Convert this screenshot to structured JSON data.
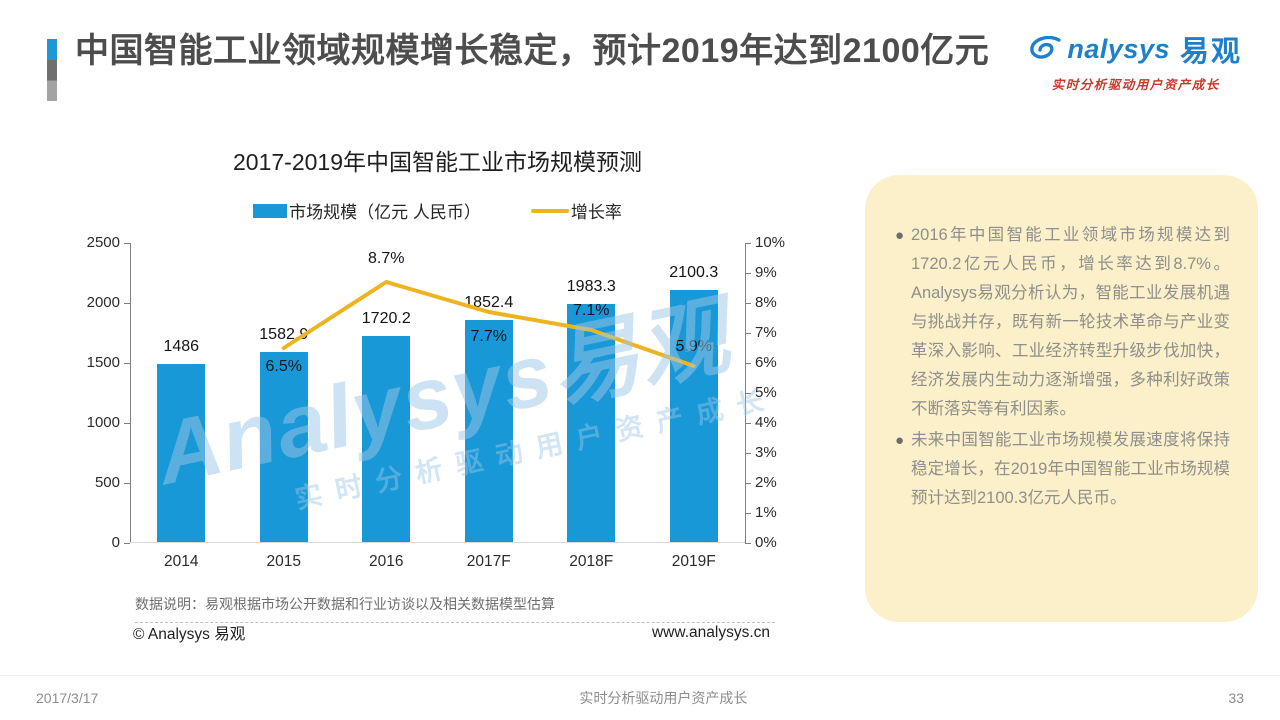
{
  "slide": {
    "title": "中国智能工业领域规模增长稳定，预计2019年达到2100亿元",
    "footer_date": "2017/3/17",
    "footer_center": "实时分析驱动用户资产成长",
    "page_number": "33"
  },
  "logo": {
    "text_en": "nalysys",
    "text_cn": "易观",
    "tagline": "实时分析驱动用户资产成长"
  },
  "chart": {
    "title": "2017-2019年中国智能工业市场规模预测",
    "legend": [
      {
        "label": "市场规模（亿元 人民币）",
        "color": "#1898d6",
        "type": "bar"
      },
      {
        "label": "增长率",
        "color": "#eeb41f",
        "type": "line"
      }
    ],
    "note": "数据说明：易观根据市场公开数据和行业访谈以及相关数据模型估算",
    "copyright": "© Analysys 易观",
    "website": "www.analysys.cn",
    "watermark_line1": "Analysys易观",
    "watermark_line2": "实时分析驱动用户资产成长"
  },
  "chart_data": {
    "type": "bar",
    "categories": [
      "2014",
      "2015",
      "2016",
      "2017F",
      "2018F",
      "2019F"
    ],
    "series": [
      {
        "name": "市场规模（亿元 人民币）",
        "type": "bar",
        "axis": "left",
        "color": "#1898d6",
        "values": [
          1486,
          1582.9,
          1720.2,
          1852.4,
          1983.3,
          2100.3
        ],
        "labels": [
          "1486",
          "1582.9",
          "1720.2",
          "1852.4",
          "1983.3",
          "2100.3"
        ]
      },
      {
        "name": "增长率",
        "type": "line",
        "axis": "right",
        "color": "#eeb41f",
        "values": [
          null,
          6.5,
          8.7,
          7.7,
          7.1,
          5.9
        ],
        "labels": [
          null,
          "6.5%",
          "8.7%",
          "7.7%",
          "7.1%",
          "5.9%"
        ]
      }
    ],
    "left_axis": {
      "ticks": [
        0,
        500,
        1000,
        1500,
        2000,
        2500
      ],
      "min": 0,
      "max": 2500
    },
    "right_axis": {
      "ticks": [
        "0%",
        "1%",
        "2%",
        "3%",
        "4%",
        "5%",
        "6%",
        "7%",
        "8%",
        "9%",
        "10%"
      ],
      "min": 0,
      "max": 10
    },
    "grid": false,
    "legend_position": "top",
    "title": "2017-2019年中国智能工业市场规模预测"
  },
  "sidebar": {
    "bullets": [
      "2016年中国智能工业领域市场规模达到1720.2亿元人民币，增长率达到8.7%。Analysys易观分析认为，智能工业发展机遇与挑战并存，既有新一轮技术革命与产业变革深入影响、工业经济转型升级步伐加快，经济发展内生动力逐渐增强，多种利好政策不断落实等有利因素。",
      "未来中国智能工业市场规模发展速度将保持稳定增长，在2019年中国智能工业市场规模预计达到2100.3亿元人民币。"
    ]
  }
}
